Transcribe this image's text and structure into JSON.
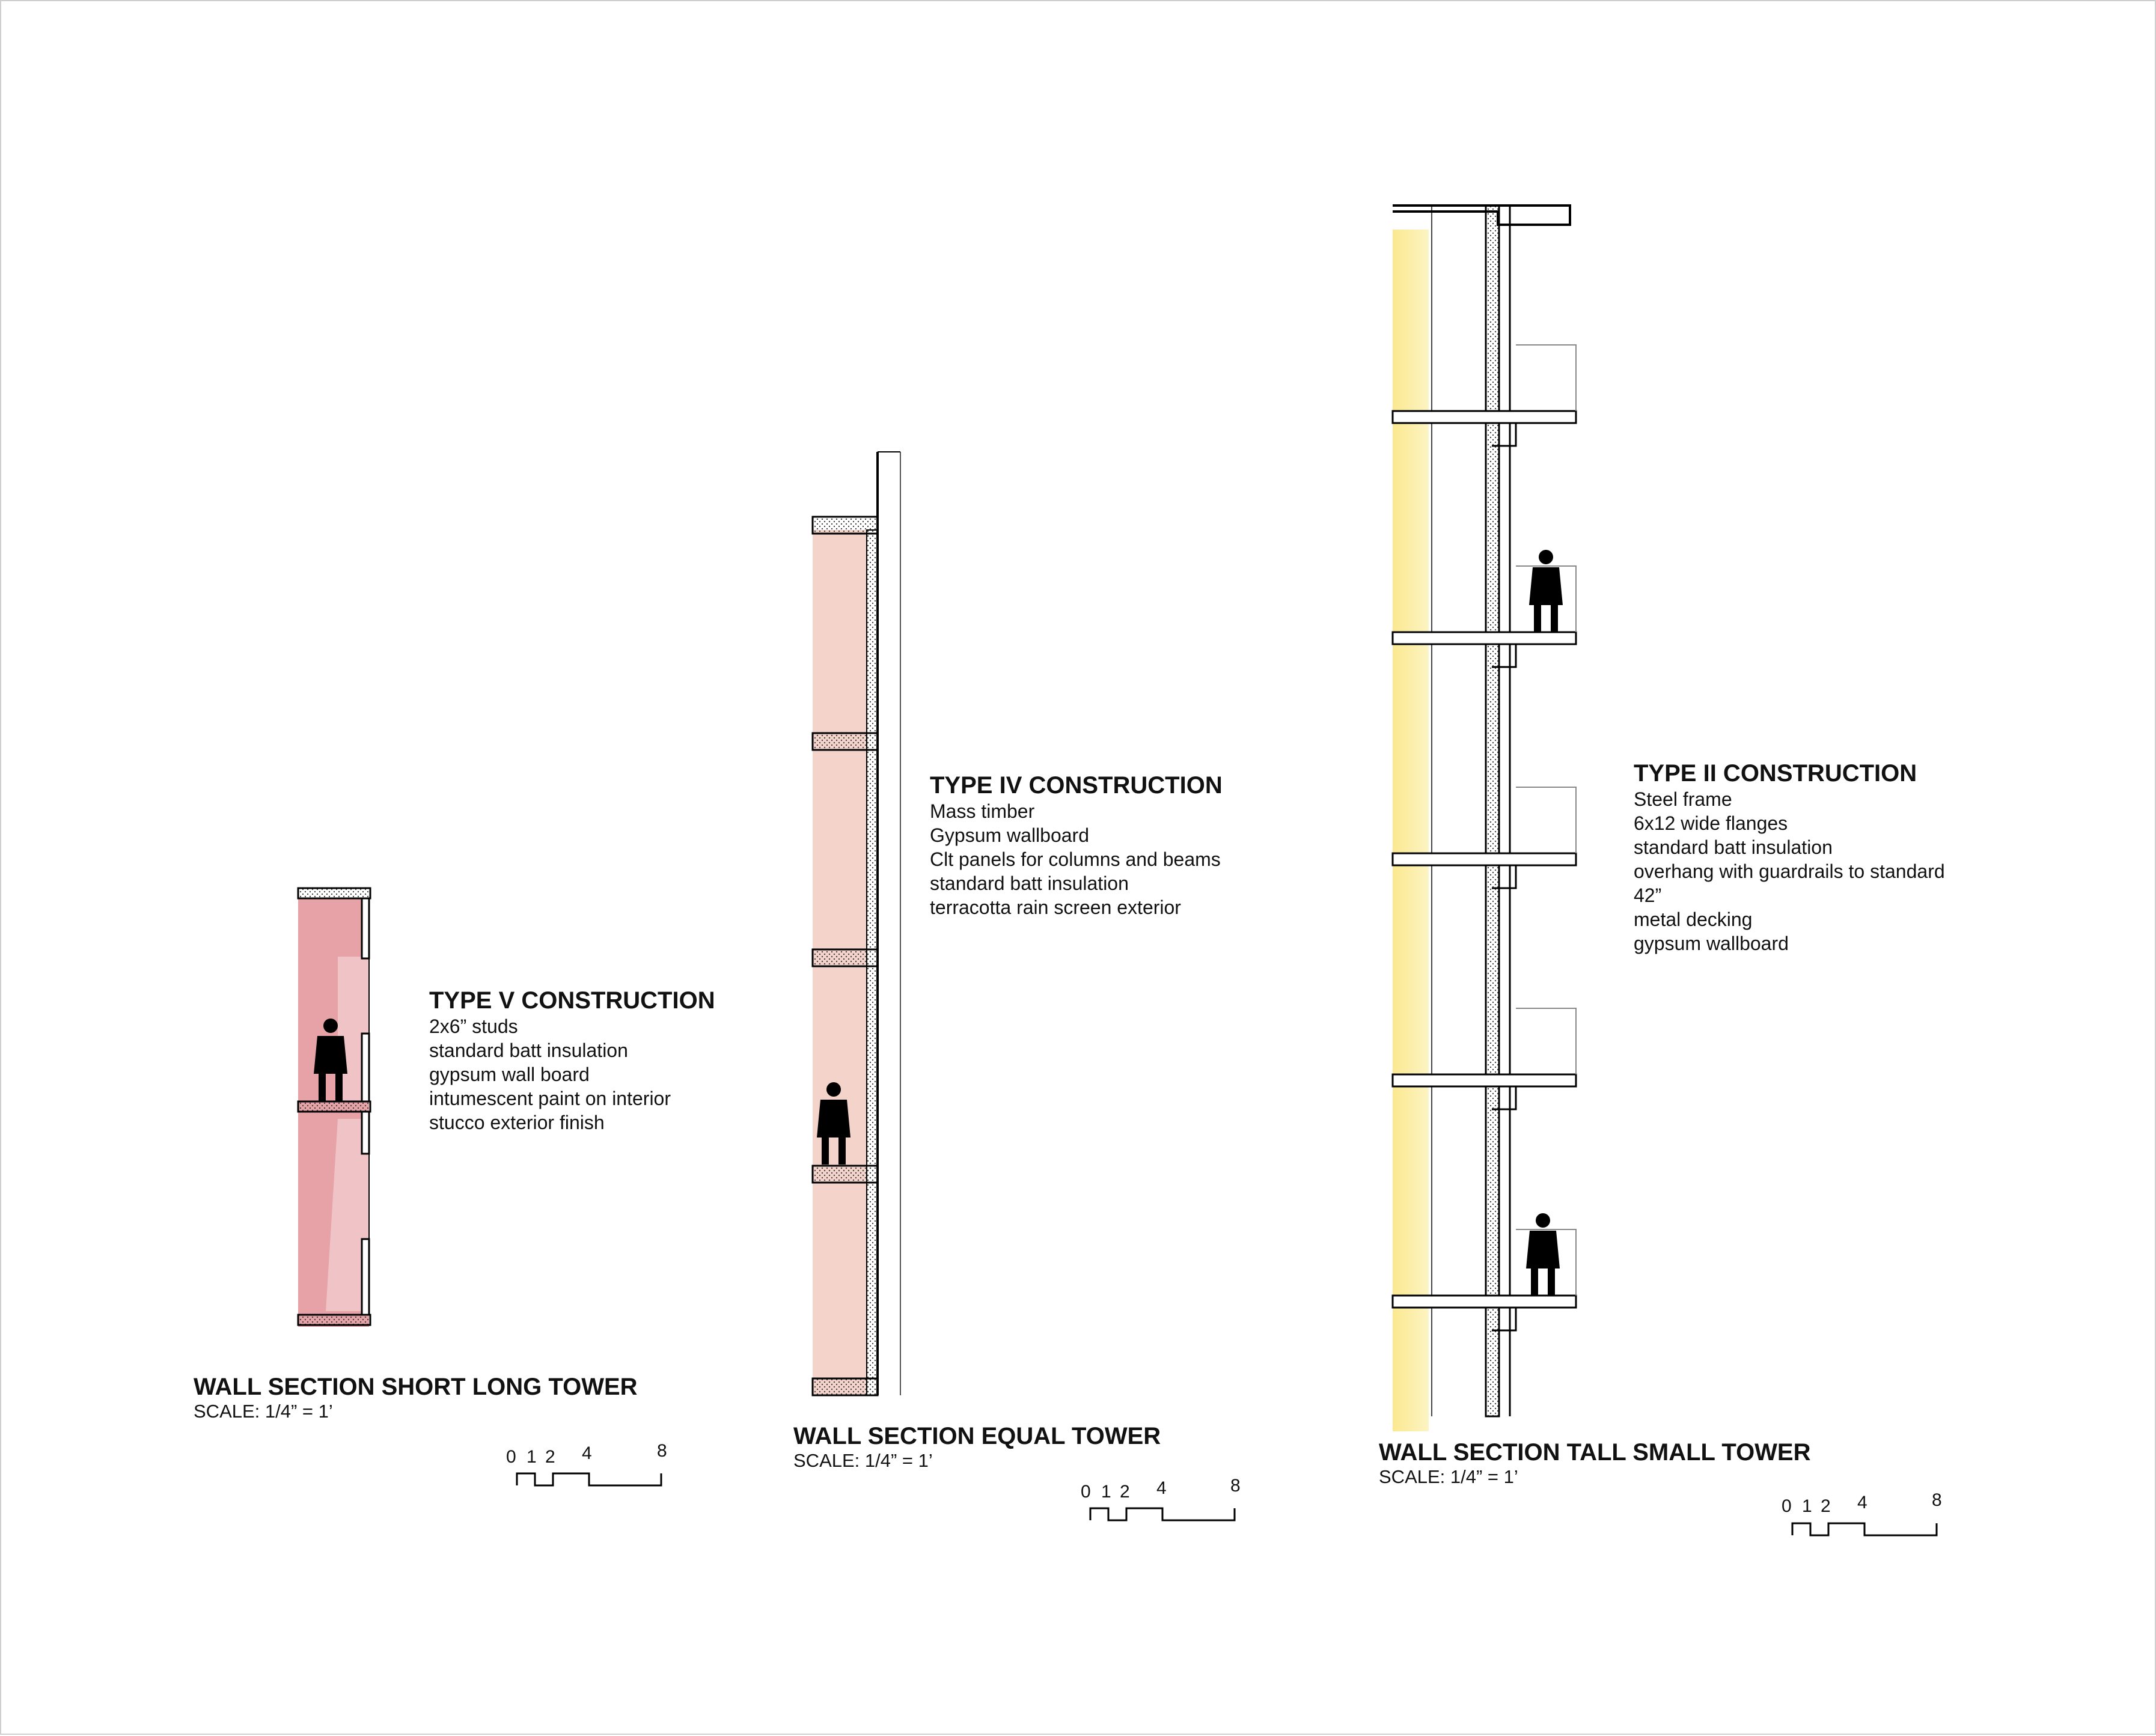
{
  "sections": [
    {
      "title": "WALL SECTION SHORT LONG TOWER",
      "scale": "SCALE: 1/4” = 1’",
      "construction": "TYPE V CONSTRUCTION",
      "specs": [
        "2x6” studs",
        "standard batt insulation",
        "gypsum wall board",
        "intumescent paint on interior",
        "stucco exterior finish"
      ],
      "fill_color": "#e6a2a6",
      "scale_bar": [
        "0",
        "1",
        "2",
        "4",
        "8"
      ]
    },
    {
      "title": "WALL SECTION  EQUAL TOWER",
      "scale": "SCALE: 1/4” = 1’",
      "construction": "TYPE IV CONSTRUCTION",
      "specs": [
        "Mass timber",
        "Gypsum wallboard",
        "Clt panels for columns and beams",
        "standard batt insulation",
        "terracotta rain screen exterior"
      ],
      "fill_color": "#f3d3ca",
      "scale_bar": [
        "0",
        "1",
        "2",
        "4",
        "8"
      ]
    },
    {
      "title": "WALL SECTION TALL SMALL TOWER",
      "scale": "SCALE: 1/4” = 1’",
      "construction": "TYPE II CONSTRUCTION",
      "specs": [
        "Steel frame",
        "6x12 wide flanges",
        "standard batt insulation",
        "overhang with guardrails to standard",
        "42”",
        "metal decking",
        "gypsum wallboard"
      ],
      "fill_color": "#fbf0b0",
      "scale_bar": [
        "0",
        "1",
        "2",
        "4",
        "8"
      ]
    }
  ]
}
